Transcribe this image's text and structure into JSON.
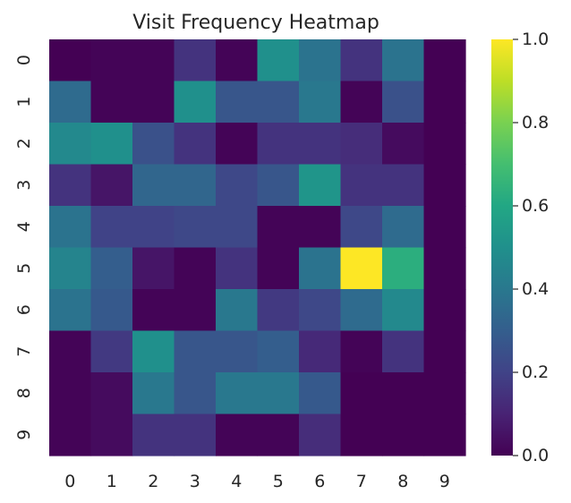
{
  "chart_data": {
    "type": "heatmap",
    "title": "Visit Frequency Heatmap",
    "xlabel": "",
    "ylabel": "",
    "x_categories": [
      "0",
      "1",
      "2",
      "3",
      "4",
      "5",
      "6",
      "7",
      "8",
      "9"
    ],
    "y_categories": [
      "0",
      "1",
      "2",
      "3",
      "4",
      "5",
      "6",
      "7",
      "8",
      "9"
    ],
    "colormap": "viridis",
    "vmin": 0.0,
    "vmax": 1.0,
    "colorbar_ticks": [
      0.0,
      0.2,
      0.4,
      0.6,
      0.8,
      1.0
    ],
    "colorbar_tick_labels": [
      "0.0",
      "0.2",
      "0.4",
      "0.6",
      "0.8",
      "1.0"
    ],
    "values": [
      [
        0.0,
        0.01,
        0.01,
        0.15,
        0.01,
        0.5,
        0.38,
        0.15,
        0.38,
        0.0
      ],
      [
        0.35,
        0.01,
        0.01,
        0.5,
        0.27,
        0.27,
        0.4,
        0.01,
        0.25,
        0.0
      ],
      [
        0.47,
        0.5,
        0.25,
        0.15,
        0.01,
        0.15,
        0.15,
        0.13,
        0.03,
        0.0
      ],
      [
        0.15,
        0.06,
        0.33,
        0.33,
        0.22,
        0.27,
        0.52,
        0.15,
        0.15,
        0.0
      ],
      [
        0.38,
        0.2,
        0.2,
        0.22,
        0.22,
        0.01,
        0.01,
        0.22,
        0.35,
        0.0
      ],
      [
        0.45,
        0.3,
        0.06,
        0.01,
        0.15,
        0.01,
        0.38,
        1.0,
        0.63,
        0.0
      ],
      [
        0.38,
        0.28,
        0.01,
        0.01,
        0.4,
        0.17,
        0.22,
        0.35,
        0.47,
        0.0
      ],
      [
        0.01,
        0.17,
        0.5,
        0.27,
        0.27,
        0.3,
        0.12,
        0.01,
        0.15,
        0.0
      ],
      [
        0.01,
        0.03,
        0.4,
        0.27,
        0.4,
        0.4,
        0.28,
        0.0,
        0.0,
        0.0
      ],
      [
        0.01,
        0.03,
        0.15,
        0.15,
        0.01,
        0.01,
        0.13,
        0.0,
        0.0,
        0.0
      ]
    ]
  }
}
